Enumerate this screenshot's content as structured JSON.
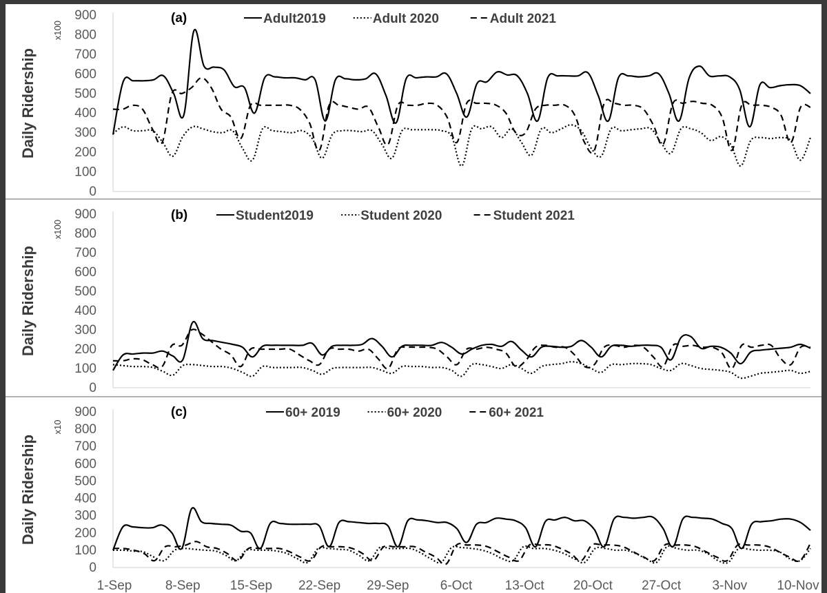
{
  "chart_data": [
    {
      "type": "line",
      "panel_label": "(a)",
      "ylabel": "Daily Ridership",
      "yunit": "x100",
      "yticks": [
        "0",
        "100",
        "200",
        "300",
        "400",
        "500",
        "600",
        "700",
        "800",
        "900"
      ],
      "ylim": [
        0,
        900
      ],
      "x_tick_labels": [
        "1-Sep",
        "8-Sep",
        "15-Sep",
        "22-Sep",
        "29-Sep",
        "6-Oct",
        "13-Oct",
        "20-Oct",
        "27-Oct",
        "3-Nov",
        "10-Nov"
      ],
      "legend": [
        "Adult2019",
        "Adult 2020",
        "Adult 2021"
      ],
      "series": [
        {
          "name": "Adult2019",
          "style": "solid",
          "values": [
            290,
            560,
            565,
            565,
            570,
            590,
            500,
            390,
            820,
            640,
            635,
            620,
            535,
            530,
            400,
            580,
            585,
            580,
            580,
            570,
            570,
            360,
            570,
            575,
            570,
            575,
            600,
            490,
            350,
            575,
            580,
            585,
            585,
            600,
            500,
            380,
            550,
            560,
            610,
            595,
            590,
            500,
            360,
            580,
            590,
            590,
            590,
            605,
            490,
            360,
            580,
            590,
            585,
            590,
            600,
            500,
            360,
            580,
            640,
            590,
            590,
            585,
            520,
            330,
            545,
            530,
            540,
            545,
            540,
            500
          ]
        },
        {
          "name": "Adult 2020",
          "style": "dotted",
          "values": [
            295,
            330,
            310,
            310,
            310,
            250,
            180,
            280,
            330,
            320,
            305,
            300,
            310,
            220,
            160,
            320,
            310,
            305,
            300,
            310,
            270,
            170,
            290,
            310,
            310,
            305,
            310,
            240,
            170,
            310,
            315,
            315,
            315,
            310,
            280,
            130,
            320,
            320,
            330,
            275,
            320,
            250,
            185,
            320,
            300,
            320,
            340,
            310,
            220,
            180,
            320,
            310,
            315,
            320,
            320,
            250,
            195,
            320,
            320,
            300,
            260,
            280,
            240,
            130,
            260,
            275,
            270,
            275,
            260,
            160,
            275
          ]
        },
        {
          "name": "Adult 2021",
          "style": "dashed",
          "values": [
            420,
            420,
            440,
            420,
            320,
            250,
            500,
            500,
            530,
            580,
            530,
            420,
            380,
            270,
            440,
            440,
            440,
            440,
            440,
            420,
            350,
            210,
            440,
            440,
            430,
            420,
            430,
            330,
            240,
            440,
            440,
            440,
            450,
            440,
            380,
            250,
            450,
            450,
            450,
            440,
            400,
            300,
            300,
            420,
            440,
            440,
            440,
            390,
            250,
            210,
            450,
            450,
            440,
            440,
            420,
            340,
            240,
            450,
            450,
            460,
            450,
            440,
            380,
            210,
            440,
            440,
            440,
            430,
            390,
            250,
            430,
            430
          ]
        }
      ]
    },
    {
      "type": "line",
      "panel_label": "(b)",
      "ylabel": "Daily Ridership",
      "yunit": "x100",
      "yticks": [
        "0",
        "100",
        "200",
        "300",
        "400",
        "500",
        "600",
        "700",
        "800",
        "900"
      ],
      "ylim": [
        0,
        900
      ],
      "x_tick_labels": [
        "1-Sep",
        "8-Sep",
        "15-Sep",
        "22-Sep",
        "29-Sep",
        "6-Oct",
        "13-Oct",
        "20-Oct",
        "27-Oct",
        "3-Nov",
        "10-Nov"
      ],
      "legend": [
        "Student2019",
        "Student 2020",
        "Student 2021"
      ],
      "series": [
        {
          "name": "Student2019",
          "style": "solid",
          "values": [
            90,
            170,
            175,
            180,
            180,
            190,
            165,
            145,
            340,
            255,
            245,
            235,
            225,
            210,
            160,
            215,
            220,
            220,
            220,
            220,
            230,
            170,
            215,
            220,
            220,
            225,
            255,
            215,
            160,
            215,
            220,
            220,
            220,
            235,
            210,
            175,
            200,
            220,
            225,
            215,
            240,
            195,
            160,
            210,
            215,
            210,
            215,
            245,
            210,
            160,
            215,
            220,
            215,
            220,
            220,
            210,
            145,
            260,
            265,
            205,
            215,
            210,
            180,
            125,
            185,
            195,
            200,
            205,
            210,
            225,
            205
          ]
        },
        {
          "name": "Student 2020",
          "style": "dotted",
          "values": [
            120,
            115,
            110,
            110,
            105,
            85,
            65,
            115,
            120,
            115,
            110,
            110,
            100,
            80,
            60,
            110,
            105,
            105,
            105,
            105,
            90,
            70,
            100,
            105,
            105,
            105,
            105,
            90,
            75,
            110,
            110,
            110,
            105,
            105,
            90,
            60,
            120,
            120,
            110,
            100,
            120,
            100,
            75,
            110,
            120,
            125,
            135,
            125,
            100,
            80,
            120,
            120,
            125,
            125,
            120,
            100,
            90,
            125,
            115,
            100,
            95,
            90,
            80,
            50,
            60,
            75,
            80,
            85,
            90,
            75,
            85
          ]
        },
        {
          "name": "Student 2021",
          "style": "dashed",
          "values": [
            140,
            140,
            150,
            145,
            120,
            110,
            220,
            220,
            300,
            280,
            240,
            200,
            170,
            110,
            200,
            200,
            200,
            200,
            200,
            170,
            140,
            120,
            200,
            200,
            200,
            190,
            200,
            150,
            100,
            200,
            210,
            210,
            210,
            200,
            160,
            120,
            200,
            200,
            210,
            200,
            180,
            110,
            140,
            210,
            220,
            210,
            210,
            170,
            110,
            120,
            210,
            220,
            210,
            220,
            210,
            160,
            110,
            220,
            215,
            220,
            210,
            210,
            180,
            100,
            220,
            210,
            220,
            220,
            150,
            120,
            210,
            210
          ]
        }
      ]
    },
    {
      "type": "line",
      "panel_label": "(c)",
      "ylabel": "Daily Ridership",
      "yunit": "x10",
      "yticks": [
        "0",
        "100",
        "200",
        "300",
        "400",
        "500",
        "600",
        "700",
        "800",
        "900"
      ],
      "ylim": [
        0,
        900
      ],
      "x_tick_labels": [
        "1-Sep",
        "8-Sep",
        "15-Sep",
        "22-Sep",
        "29-Sep",
        "6-Oct",
        "13-Oct",
        "20-Oct",
        "27-Oct",
        "3-Nov",
        "10-Nov"
      ],
      "legend": [
        "60+ 2019",
        "60+ 2020",
        "60+ 2021"
      ],
      "series": [
        {
          "name": "60+ 2019",
          "style": "solid",
          "values": [
            100,
            235,
            235,
            230,
            230,
            245,
            200,
            110,
            340,
            265,
            255,
            250,
            245,
            210,
            200,
            110,
            255,
            255,
            250,
            250,
            250,
            240,
            120,
            260,
            265,
            260,
            255,
            255,
            240,
            120,
            270,
            275,
            270,
            260,
            260,
            225,
            145,
            250,
            260,
            285,
            280,
            270,
            230,
            120,
            265,
            275,
            290,
            270,
            270,
            220,
            120,
            280,
            290,
            285,
            290,
            290,
            225,
            120,
            280,
            290,
            285,
            280,
            255,
            225,
            110,
            250,
            265,
            270,
            280,
            280,
            260,
            215
          ]
        },
        {
          "name": "60+ 2020",
          "style": "dotted",
          "values": [
            100,
            100,
            95,
            90,
            60,
            40,
            100,
            110,
            105,
            100,
            95,
            70,
            40,
            100,
            100,
            100,
            95,
            80,
            50,
            30,
            110,
            110,
            105,
            100,
            70,
            40,
            115,
            110,
            110,
            110,
            85,
            50,
            30,
            115,
            115,
            110,
            100,
            80,
            50,
            40,
            120,
            110,
            110,
            100,
            80,
            50,
            30,
            110,
            110,
            100,
            100,
            80,
            50,
            30,
            120,
            110,
            100,
            100,
            80,
            40,
            30,
            110,
            105,
            100,
            100,
            90,
            50,
            40,
            110
          ]
        },
        {
          "name": "60+ 2021",
          "style": "dashed",
          "values": [
            110,
            110,
            100,
            80,
            40,
            120,
            120,
            130,
            150,
            120,
            110,
            80,
            40,
            110,
            110,
            110,
            110,
            90,
            60,
            40,
            120,
            120,
            120,
            110,
            80,
            40,
            120,
            120,
            120,
            120,
            90,
            60,
            20,
            130,
            130,
            130,
            120,
            90,
            60,
            40,
            130,
            130,
            130,
            110,
            80,
            40,
            130,
            130,
            130,
            120,
            90,
            60,
            40,
            130,
            130,
            130,
            120,
            90,
            60,
            40,
            130,
            130,
            130,
            120,
            90,
            60,
            40,
            140
          ]
        }
      ]
    }
  ]
}
